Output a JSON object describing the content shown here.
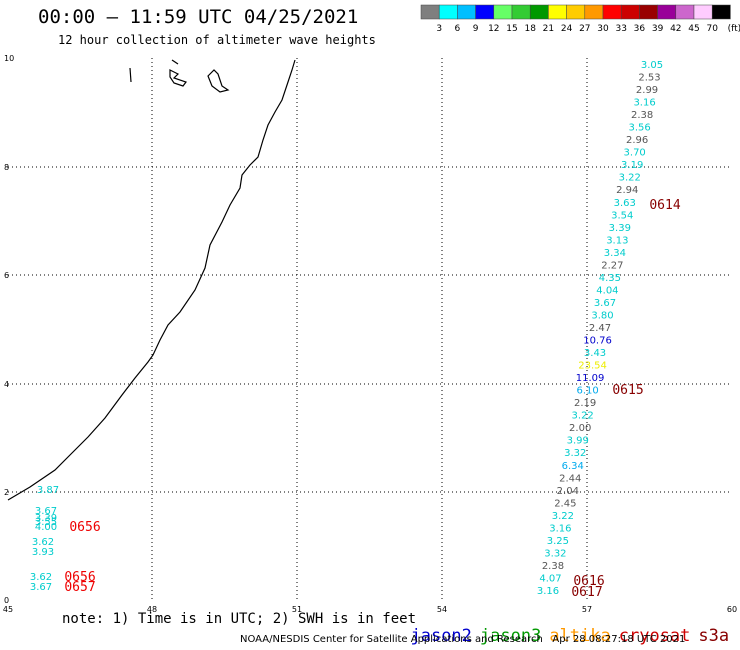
{
  "header": {
    "title": "00:00 – 11:59 UTC 04/25/2021",
    "subtitle": "12 hour collection of altimeter wave heights"
  },
  "colorbar": {
    "colors": [
      "#7f7f7f",
      "#00ffff",
      "#00bfff",
      "#0000ff",
      "#66ff66",
      "#33cc33",
      "#009900",
      "#ffff00",
      "#ffcc00",
      "#ff9900",
      "#ff0000",
      "#cc0000",
      "#990000",
      "#990099",
      "#cc66cc",
      "#ffccff",
      "#000000"
    ],
    "labels": [
      "3",
      "6",
      "9",
      "12",
      "15",
      "18",
      "21",
      "24",
      "27",
      "30",
      "33",
      "36",
      "39",
      "42",
      "45",
      "70"
    ],
    "unit": "(ft)"
  },
  "axes": {
    "x_ticks": [
      "45",
      "48",
      "51",
      "54",
      "57",
      "60"
    ],
    "y_ticks": [
      "0",
      "2",
      "4",
      "6",
      "8",
      "10"
    ]
  },
  "tracks": {
    "east": [
      {
        "v": "3.05",
        "c": "#00cccc"
      },
      {
        "v": "2.53",
        "c": "#555555"
      },
      {
        "v": "2.99",
        "c": "#555555"
      },
      {
        "v": "3.16",
        "c": "#00cccc"
      },
      {
        "v": "2.38",
        "c": "#555555"
      },
      {
        "v": "3.56",
        "c": "#00cccc"
      },
      {
        "v": "2.96",
        "c": "#555555"
      },
      {
        "v": "3.70",
        "c": "#00cccc"
      },
      {
        "v": "3.19",
        "c": "#00cccc"
      },
      {
        "v": "3.22",
        "c": "#00cccc"
      },
      {
        "v": "2.94",
        "c": "#555555"
      },
      {
        "v": "3.63",
        "c": "#00cccc"
      },
      {
        "v": "3.54",
        "c": "#00cccc"
      },
      {
        "v": "3.39",
        "c": "#00cccc"
      },
      {
        "v": "3.13",
        "c": "#00cccc"
      },
      {
        "v": "3.34",
        "c": "#00cccc"
      },
      {
        "v": "2.27",
        "c": "#555555"
      },
      {
        "v": "4.35",
        "c": "#00cccc"
      },
      {
        "v": "4.04",
        "c": "#00cccc"
      },
      {
        "v": "3.67",
        "c": "#00cccc"
      },
      {
        "v": "3.80",
        "c": "#00cccc"
      },
      {
        "v": "2.47",
        "c": "#555555"
      },
      {
        "v": "10.76",
        "c": "#0000cc"
      },
      {
        "v": "3.43",
        "c": "#00cccc"
      },
      {
        "v": "23.54",
        "c": "#eeee00"
      },
      {
        "v": "11.09",
        "c": "#0000cc"
      },
      {
        "v": "6.10",
        "c": "#00aaee"
      },
      {
        "v": "2.19",
        "c": "#555555"
      },
      {
        "v": "3.22",
        "c": "#00cccc"
      },
      {
        "v": "2.00",
        "c": "#555555"
      },
      {
        "v": "3.99",
        "c": "#00cccc"
      },
      {
        "v": "3.32",
        "c": "#00cccc"
      },
      {
        "v": "6.34",
        "c": "#00aaee"
      },
      {
        "v": "2.44",
        "c": "#555555"
      },
      {
        "v": "2.04",
        "c": "#555555"
      },
      {
        "v": "2.45",
        "c": "#555555"
      },
      {
        "v": "3.22",
        "c": "#00cccc"
      },
      {
        "v": "3.16",
        "c": "#00cccc"
      },
      {
        "v": "3.25",
        "c": "#00cccc"
      },
      {
        "v": "3.32",
        "c": "#00cccc"
      },
      {
        "v": "2.38",
        "c": "#555555"
      },
      {
        "v": "4.07",
        "c": "#00cccc"
      },
      {
        "v": "3.16",
        "c": "#00cccc"
      }
    ],
    "west": [
      {
        "v": "3.87",
        "c": "#00cccc"
      },
      {
        "v": "3.67",
        "c": "#00cccc"
      },
      {
        "v": "3.39",
        "c": "#00cccc"
      },
      {
        "v": "3.55",
        "c": "#00cccc"
      },
      {
        "v": "4.00",
        "c": "#00cccc"
      },
      {
        "v": "3.62",
        "c": "#00cccc"
      },
      {
        "v": "3.93",
        "c": "#00cccc"
      },
      {
        "v": "3.62",
        "c": "#00cccc"
      },
      {
        "v": "3.67",
        "c": "#00cccc"
      }
    ],
    "time_labels": [
      {
        "t": "0614",
        "c": "#880000"
      },
      {
        "t": "0615",
        "c": "#880000"
      },
      {
        "t": "0616",
        "c": "#880000"
      },
      {
        "t": "0617",
        "c": "#880000"
      },
      {
        "t": "0656",
        "c": "#ee0000"
      },
      {
        "t": "0656",
        "c": "#ee0000"
      },
      {
        "t": "0657",
        "c": "#ee0000"
      }
    ]
  },
  "footer": {
    "note": "note: 1) Time is in UTC; 2) SWH is in feet",
    "legend": [
      {
        "name": "jason2",
        "c": "#0000cc"
      },
      {
        "name": "jason3",
        "c": "#009900"
      },
      {
        "name": "altika",
        "c": "#ff9900"
      },
      {
        "name": "cryosat",
        "c": "#cc0000"
      },
      {
        "name": "s3a",
        "c": "#880000"
      }
    ],
    "credit": "NOAA/NESDIS Center for Satellite Applications and Research   Apr 28 08:27:18 UTC 2021"
  }
}
